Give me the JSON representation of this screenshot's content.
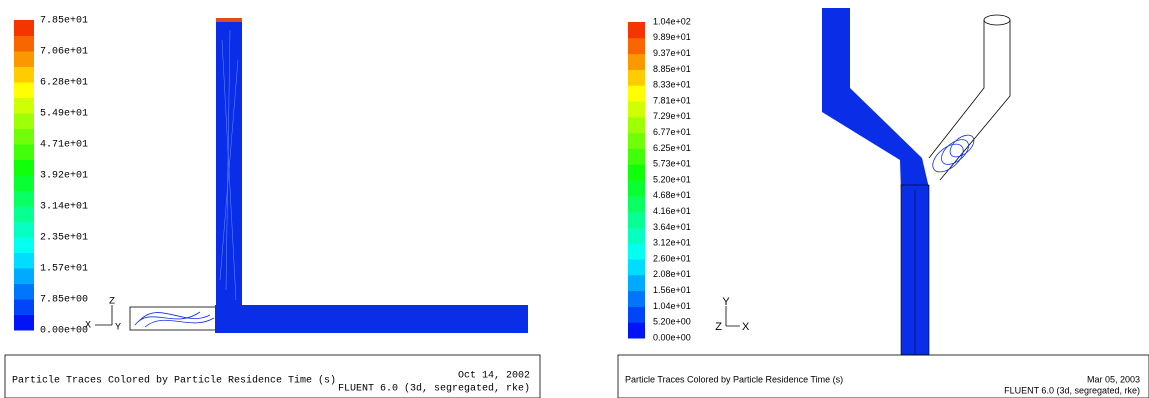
{
  "left": {
    "colorbar_labels": [
      "7.85e+01",
      "7.06e+01",
      "6.28e+01",
      "5.49e+01",
      "4.71e+01",
      "3.92e+01",
      "3.14e+01",
      "2.35e+01",
      "1.57e+01",
      "7.85e+00",
      "0.00e+00"
    ],
    "axes": [
      "Z",
      "X",
      "Y"
    ],
    "caption": "Particle Traces Colored by Particle Residence Time (s)",
    "date": "Oct 14, 2002",
    "software": "FLUENT 6.0 (3d, segregated, rke)"
  },
  "right": {
    "colorbar_labels": [
      "1.04e+02",
      "9.89e+01",
      "9.37e+01",
      "8.85e+01",
      "8.33e+01",
      "7.81e+01",
      "7.29e+01",
      "6.77e+01",
      "6.25e+01",
      "5.73e+01",
      "5.20e+01",
      "4.68e+01",
      "4.16e+01",
      "3.64e+01",
      "3.12e+01",
      "2.60e+01",
      "2.08e+01",
      "1.56e+01",
      "1.04e+01",
      "5.20e+00",
      "0.00e+00"
    ],
    "axes": [
      "Y",
      "Z",
      "X"
    ],
    "caption": "Particle Traces Colored by Particle Residence Time (s)",
    "date": "Mar 05, 2003",
    "software": "FLUENT 6.0 (3d, segregated, rke)"
  }
}
